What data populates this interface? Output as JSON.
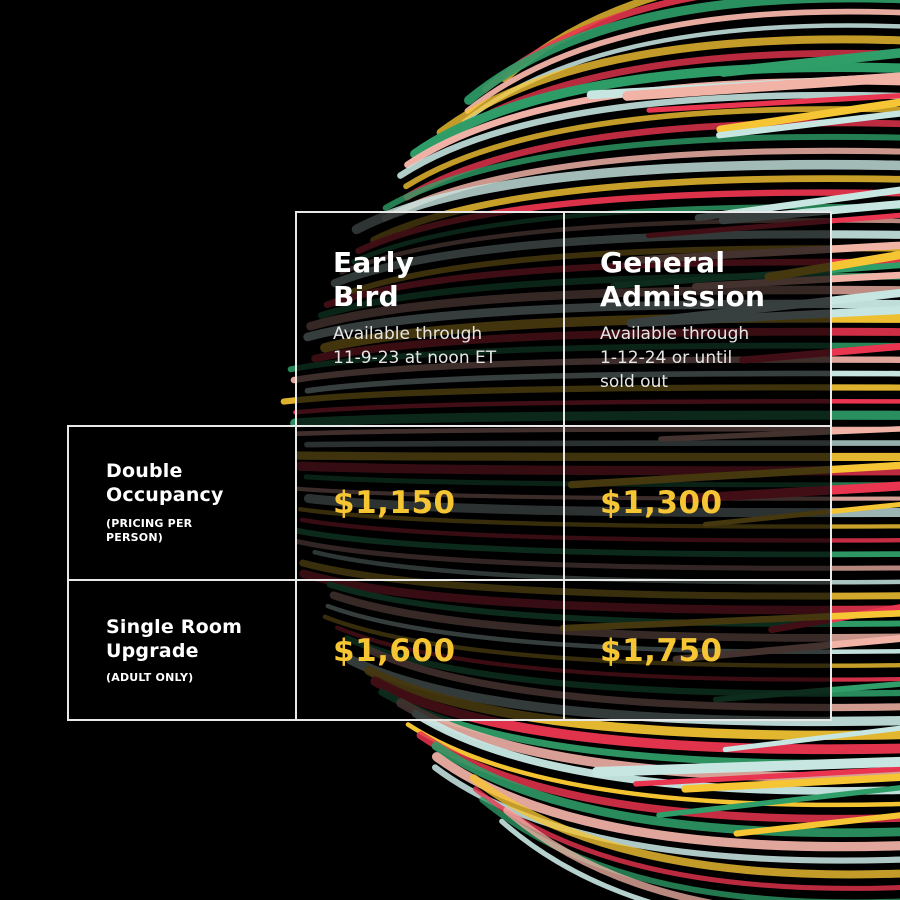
{
  "colors": {
    "accent": "#f6c533",
    "border": "#e8e8e8",
    "stripes": [
      "#f6c533",
      "#e9354f",
      "#2f9e68",
      "#f2b3a7",
      "#c7e6e2"
    ]
  },
  "columns": [
    {
      "title": "Early\nBird",
      "availability": "Available through\n11-9-23 at noon ET"
    },
    {
      "title": "General\nAdmission",
      "availability": "Available through\n1-12-24 or until\nsold out"
    }
  ],
  "rows": [
    {
      "title": "Double\nOccupancy",
      "note": "(PRICING PER\nPERSON)",
      "prices": [
        "$1,150",
        "$1,300"
      ]
    },
    {
      "title": "Single Room\nUpgrade",
      "note": "(ADULT ONLY)",
      "prices": [
        "$1,600",
        "$1,750"
      ]
    }
  ]
}
